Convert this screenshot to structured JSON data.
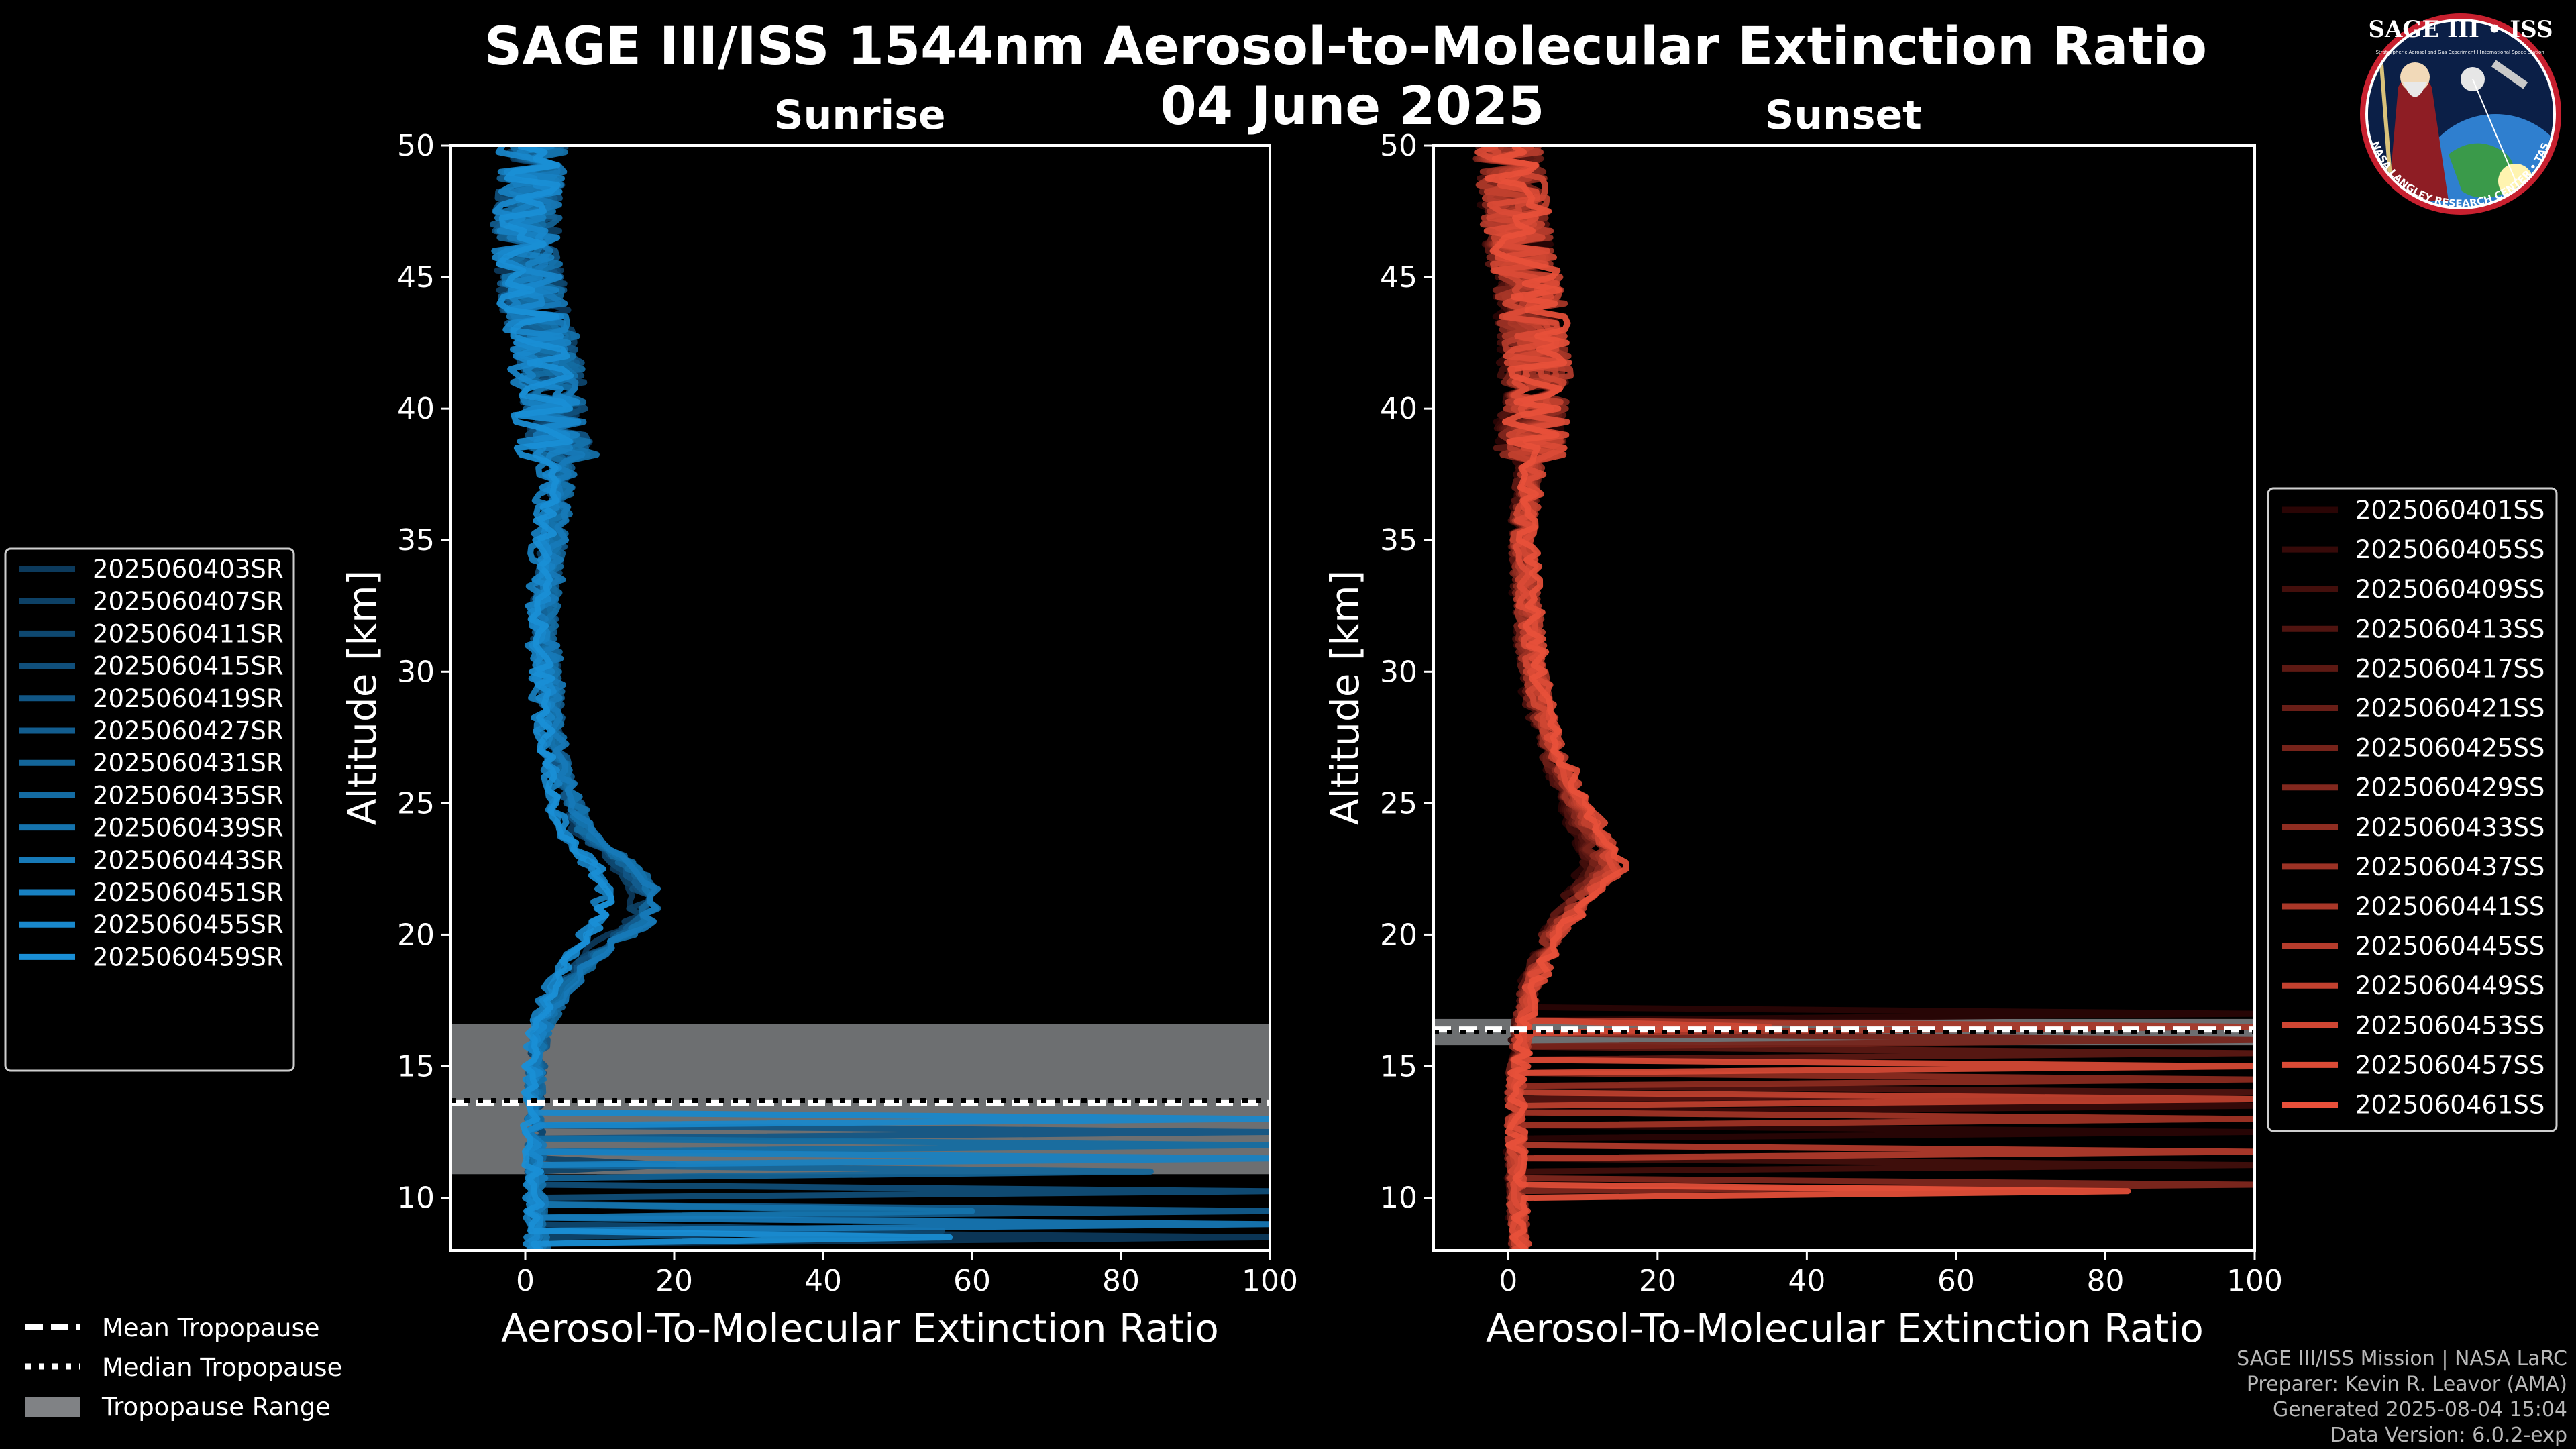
{
  "figure": {
    "title_line1": "SAGE III/ISS 1544nm Aerosol-to-Molecular Extinction Ratio",
    "title_line2": "04 June 2025"
  },
  "chart_data": [
    {
      "type": "line",
      "panel": "sunrise",
      "title": "Sunrise",
      "xlabel": "Aerosol-To-Molecular Extinction Ratio",
      "ylabel": "Altitude [km]",
      "xlim": [
        -10,
        100
      ],
      "ylim": [
        8,
        50
      ],
      "xticks": [
        0,
        20,
        40,
        60,
        80,
        100
      ],
      "yticks": [
        10,
        15,
        20,
        25,
        30,
        35,
        40,
        45,
        50
      ],
      "xtick_labels": [
        "0",
        "20",
        "40",
        "60",
        "80",
        "100"
      ],
      "ytick_labels": [
        "10",
        "15",
        "20",
        "25",
        "30",
        "35",
        "40",
        "45",
        "50"
      ],
      "color_dark": "#0c3a5c",
      "color_light": "#1a8fd6",
      "tropopause": {
        "mean": 13.6,
        "median": 13.7,
        "min": 10.9,
        "max": 16.6
      },
      "profile_shape": {
        "alt": [
          8.3,
          10,
          12,
          14,
          15.5,
          16.5,
          18,
          19.5,
          20.5,
          21.5,
          22.5,
          24,
          26,
          28,
          30,
          32,
          35,
          38,
          41,
          44,
          47,
          50
        ],
        "ratio": [
          1.5,
          1.2,
          1.0,
          1.0,
          1.3,
          1.8,
          4,
          8,
          12,
          13,
          11,
          6,
          4,
          3,
          2.5,
          2,
          3,
          4,
          3,
          1,
          0,
          1
        ]
      },
      "series": [
        {
          "name": "2025060403SR",
          "spikes": [
            {
              "alt": 8.5,
              "value": 100
            }
          ]
        },
        {
          "name": "2025060407SR",
          "spikes": [
            {
              "alt": 11.3,
              "value": 20
            }
          ]
        },
        {
          "name": "2025060411SR",
          "spikes": [
            {
              "alt": 8.7,
              "value": 56
            }
          ]
        },
        {
          "name": "2025060415SR",
          "spikes": [
            {
              "alt": 10.2,
              "value": 100
            }
          ]
        },
        {
          "name": "2025060419SR",
          "spikes": [
            {
              "alt": 12.6,
              "value": 100
            }
          ]
        },
        {
          "name": "2025060427SR",
          "spikes": [
            {
              "alt": 9.6,
              "value": 100
            }
          ]
        },
        {
          "name": "2025060431SR",
          "spikes": [
            {
              "alt": 11.0,
              "value": 84
            }
          ]
        },
        {
          "name": "2025060435SR",
          "spikes": [
            {
              "alt": 12.1,
              "value": 100
            }
          ]
        },
        {
          "name": "2025060439SR",
          "spikes": [
            {
              "alt": 9.5,
              "value": 60
            }
          ]
        },
        {
          "name": "2025060443SR",
          "spikes": [
            {
              "alt": 8.9,
              "value": 100
            }
          ]
        },
        {
          "name": "2025060451SR",
          "spikes": [
            {
              "alt": 11.5,
              "value": 100
            }
          ]
        },
        {
          "name": "2025060455SR",
          "spikes": [
            {
              "alt": 13.0,
              "value": 100
            }
          ]
        },
        {
          "name": "2025060459SR",
          "spikes": [
            {
              "alt": 8.6,
              "value": 57
            }
          ]
        }
      ]
    },
    {
      "type": "line",
      "panel": "sunset",
      "title": "Sunset",
      "xlabel": "Aerosol-To-Molecular Extinction Ratio",
      "ylabel": "Altitude [km]",
      "xlim": [
        -10,
        100
      ],
      "ylim": [
        8,
        50
      ],
      "xticks": [
        0,
        20,
        40,
        60,
        80,
        100
      ],
      "yticks": [
        10,
        15,
        20,
        25,
        30,
        35,
        40,
        45,
        50
      ],
      "xtick_labels": [
        "0",
        "20",
        "40",
        "60",
        "80",
        "100"
      ],
      "ytick_labels": [
        "10",
        "15",
        "20",
        "25",
        "30",
        "35",
        "40",
        "45",
        "50"
      ],
      "color_dark": "#2a0505",
      "color_light": "#e8503a",
      "tropopause": {
        "mean": 16.4,
        "median": 16.3,
        "min": 15.8,
        "max": 16.8
      },
      "profile_shape": {
        "alt": [
          8.3,
          10,
          12,
          14,
          15.5,
          16.5,
          18,
          20,
          21.5,
          22.5,
          23.5,
          25,
          27,
          29,
          31,
          33,
          35,
          38,
          41,
          44,
          47,
          50
        ],
        "ratio": [
          1.5,
          1.2,
          1.0,
          1.0,
          1.5,
          2,
          3,
          6,
          10,
          13,
          12,
          9,
          6,
          4,
          3,
          2.5,
          2,
          3,
          4,
          3,
          1,
          0
        ]
      },
      "series": [
        {
          "name": "2025060401SS",
          "spikes": [
            {
              "alt": 16.9,
              "value": 100
            },
            {
              "alt": 12.5,
              "value": 100
            }
          ]
        },
        {
          "name": "2025060405SS",
          "spikes": [
            {
              "alt": 13.5,
              "value": 100
            }
          ]
        },
        {
          "name": "2025060409SS",
          "spikes": [
            {
              "alt": 11.3,
              "value": 100
            }
          ]
        },
        {
          "name": "2025060413SS",
          "spikes": [
            {
              "alt": 14.1,
              "value": 100
            }
          ]
        },
        {
          "name": "2025060417SS",
          "spikes": [
            {
              "alt": 15.4,
              "value": 100
            }
          ]
        },
        {
          "name": "2025060421SS",
          "spikes": [
            {
              "alt": 12.9,
              "value": 100
            }
          ]
        },
        {
          "name": "2025060425SS",
          "spikes": [
            {
              "alt": 16.1,
              "value": 100
            }
          ]
        },
        {
          "name": "2025060429SS",
          "spikes": [
            {
              "alt": 10.5,
              "value": 100
            }
          ]
        },
        {
          "name": "2025060433SS",
          "spikes": [
            {
              "alt": 14.6,
              "value": 100
            }
          ]
        },
        {
          "name": "2025060437SS",
          "spikes": [
            {
              "alt": 13.1,
              "value": 100
            }
          ]
        },
        {
          "name": "2025060441SS",
          "spikes": [
            {
              "alt": 16.5,
              "value": 100
            }
          ]
        },
        {
          "name": "2025060445SS",
          "spikes": [
            {
              "alt": 11.8,
              "value": 100
            }
          ]
        },
        {
          "name": "2025060449SS",
          "spikes": [
            {
              "alt": 13.8,
              "value": 100
            }
          ]
        },
        {
          "name": "2025060453SS",
          "spikes": [
            {
              "alt": 16.6,
              "value": 35
            }
          ]
        },
        {
          "name": "2025060457SS",
          "spikes": [
            {
              "alt": 14.9,
              "value": 100
            }
          ]
        },
        {
          "name": "2025060461SS",
          "spikes": [
            {
              "alt": 10.3,
              "value": 83
            }
          ]
        }
      ]
    }
  ],
  "tropopause_legend": {
    "mean": "Mean Tropopause",
    "median": "Median Tropopause",
    "range": "Tropopause Range",
    "range_color": "#808285"
  },
  "credits": {
    "line1": "SAGE III/ISS Mission | NASA LaRC",
    "line2": "Preparer: Kevin R. Leavor (AMA)",
    "line3": "Generated 2025-08-04 15:04",
    "line4": "Data Version: 6.0.2-exp"
  },
  "logo": {
    "title": "SAGE III • ISS",
    "ring_text": "BALL • NASA LANGLEY RESEARCH CENTER • TAS-I • ESA",
    "subtitle_left": "Stratospheric Aerosol and Gas Experiment III",
    "subtitle_right": "International Space Station"
  }
}
